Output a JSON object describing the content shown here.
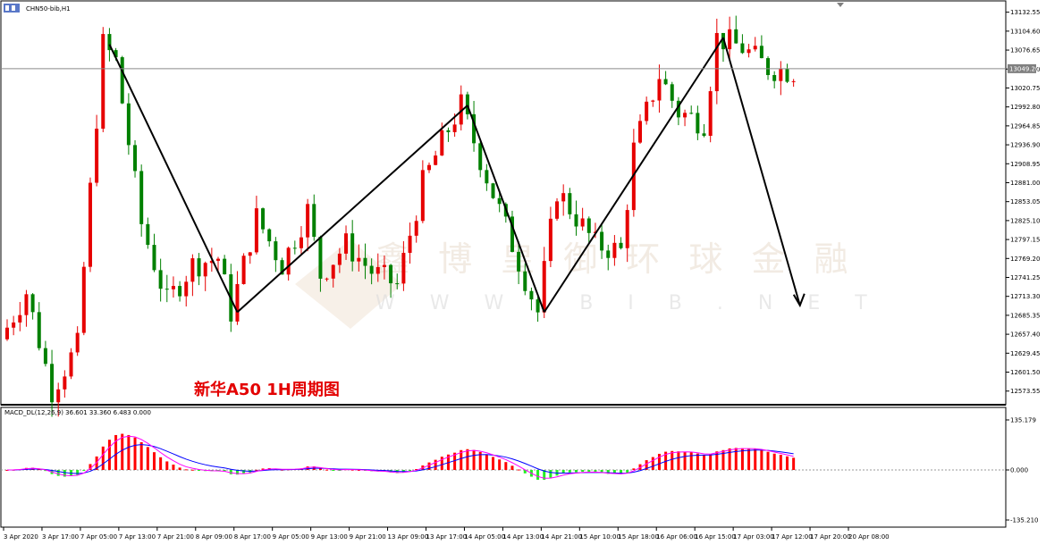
{
  "symbol": "CHN50-bib,H1",
  "caption": "新华A50 1H周期图",
  "watermark": {
    "brand": "鑫 博 皇 御 环 球 金 融",
    "site": "W W W . B I B . N E T"
  },
  "colors": {
    "bull": "#e60000",
    "bear": "#008000",
    "trend": "#000000",
    "hist_pos": "#ff0000",
    "hist_neg": "#22ee22",
    "macd": "#0000ff",
    "signal": "#ff00ff"
  },
  "chart_data": [
    {
      "type": "candlestick",
      "title": "",
      "y_ticks": [
        "13132.55",
        "13104.60",
        "13076.65",
        "13048.70",
        "13020.75",
        "12992.80",
        "12964.85",
        "12936.90",
        "12908.95",
        "12881.00",
        "12853.05",
        "12825.10",
        "12797.15",
        "12769.20",
        "12741.25",
        "12713.30",
        "12685.35",
        "12657.40",
        "12629.45",
        "12601.50",
        "12573.55"
      ],
      "ylim": [
        12560,
        13140
      ],
      "current_price": "13049.20",
      "x_ticks": [
        "3 Apr 2020",
        "3 Apr 17:00",
        "7 Apr 05:00",
        "7 Apr 13:00",
        "7 Apr 21:00",
        "8 Apr 09:00",
        "8 Apr 17:00",
        "9 Apr 05:00",
        "9 Apr 13:00",
        "9 Apr 21:00",
        "13 Apr 09:00",
        "13 Apr 17:00",
        "14 Apr 05:00",
        "14 Apr 13:00",
        "14 Apr 21:00",
        "15 Apr 10:00",
        "15 Apr 18:00",
        "16 Apr 06:00",
        "16 Apr 15:00",
        "17 Apr 03:00",
        "17 Apr 12:00",
        "17 Apr 20:00",
        "20 Apr 08:00"
      ],
      "trend_lines": [
        {
          "from": [
            16,
            13085
          ],
          "to": [
            36,
            12690
          ]
        },
        {
          "from": [
            36,
            12690
          ],
          "to": [
            72,
            12995
          ]
        },
        {
          "from": [
            72,
            12995
          ],
          "to": [
            84,
            12690
          ]
        },
        {
          "from": [
            84,
            12690
          ],
          "to": [
            112,
            13095
          ]
        },
        {
          "from": [
            112,
            13095
          ],
          "to": [
            124,
            12700
          ]
        }
      ]
    },
    {
      "type": "macd",
      "title": "MACD_DL(12,26,9) 36.601 33.360 6.483 0.000",
      "y_ticks": [
        "135.179",
        "0.000",
        "-135.210"
      ],
      "ylim": [
        -140,
        140
      ]
    }
  ]
}
